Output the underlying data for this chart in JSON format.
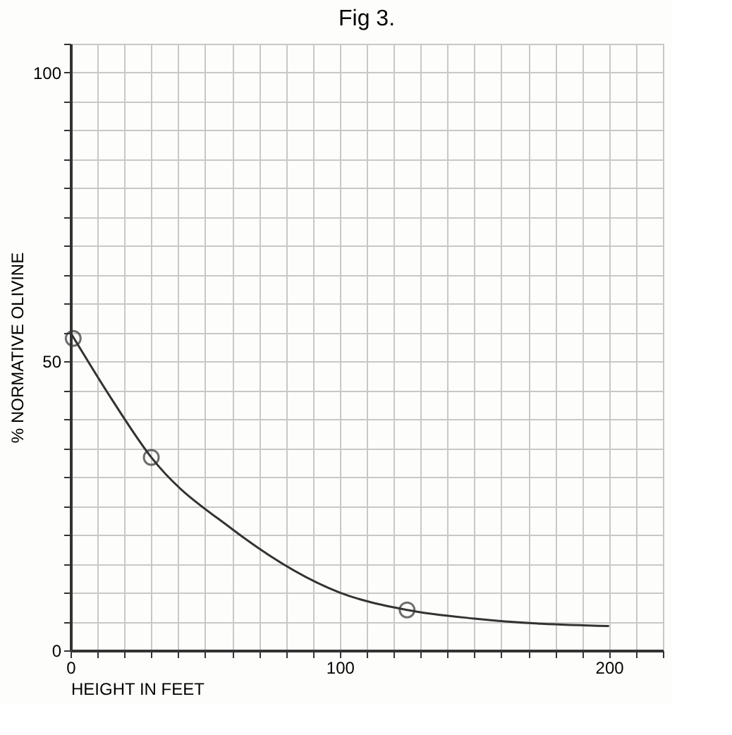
{
  "chart_data": {
    "type": "scatter",
    "title": "Fig 3.",
    "xlabel": "HEIGHT IN FEET",
    "ylabel": "% NORMATIVE OLIVINE",
    "xlim": [
      0,
      220
    ],
    "ylim": [
      0,
      105
    ],
    "xticks": [
      0,
      {
        "value": 10,
        "label": null
      },
      {
        "value": 20,
        "label": null
      },
      {
        "value": 30,
        "label": null
      },
      {
        "value": 40,
        "label": null
      },
      {
        "value": 50,
        "label": null
      },
      {
        "value": 60,
        "label": null
      },
      {
        "value": 70,
        "label": null
      },
      {
        "value": 80,
        "label": null
      },
      {
        "value": 90,
        "label": null
      },
      100,
      {
        "value": 110,
        "label": null
      },
      {
        "value": 120,
        "label": null
      },
      {
        "value": 130,
        "label": null
      },
      {
        "value": 140,
        "label": null
      },
      {
        "value": 150,
        "label": null
      },
      {
        "value": 160,
        "label": null
      },
      {
        "value": 170,
        "label": null
      },
      {
        "value": 180,
        "label": null
      },
      {
        "value": 190,
        "label": null
      },
      200,
      {
        "value": 210,
        "label": null
      },
      {
        "value": 220,
        "label": null
      }
    ],
    "yticks": [
      0,
      {
        "value": 5,
        "label": null
      },
      {
        "value": 10,
        "label": null
      },
      {
        "value": 15,
        "label": null
      },
      {
        "value": 20,
        "label": null
      },
      {
        "value": 25,
        "label": null
      },
      {
        "value": 30,
        "label": null
      },
      {
        "value": 35,
        "label": null
      },
      {
        "value": 40,
        "label": null
      },
      {
        "value": 45,
        "label": null
      },
      50,
      {
        "value": 55,
        "label": null
      },
      {
        "value": 60,
        "label": null
      },
      {
        "value": 65,
        "label": null
      },
      {
        "value": 70,
        "label": null
      },
      {
        "value": 75,
        "label": null
      },
      {
        "value": 80,
        "label": null
      },
      {
        "value": 85,
        "label": null
      },
      {
        "value": 90,
        "label": null
      },
      {
        "value": 95,
        "label": null
      },
      100,
      {
        "value": 105,
        "label": null
      }
    ],
    "grid": true,
    "series": [
      {
        "color": "#333333",
        "marker": "circle",
        "x": [
          1,
          30,
          125
        ],
        "values": [
          54,
          33.4,
          7
        ]
      },
      {
        "type": "line",
        "color": "#333333",
        "marker": "none",
        "line_style": "solid",
        "x": [
          0,
          15,
          30,
          60,
          100,
          125,
          150,
          175,
          200
        ],
        "values": [
          55,
          43.7,
          33.4,
          21,
          10,
          7,
          5.5,
          4.6,
          4.2
        ]
      }
    ]
  }
}
